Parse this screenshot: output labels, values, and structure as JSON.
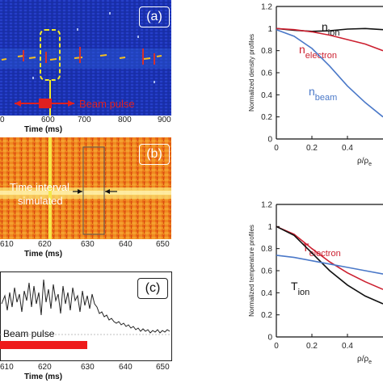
{
  "panels": {
    "a": {
      "label": "(a)",
      "xlabel": "Time (ms)",
      "xticks": [
        "0",
        "600",
        "700",
        "800",
        "900"
      ],
      "beam_label": "Beam pulse"
    },
    "b": {
      "label": "(b)",
      "xlabel": "Time (ms)",
      "xticks": [
        "610",
        "620",
        "630",
        "640",
        "650"
      ],
      "annotation_line1": "Time interval",
      "annotation_line2": "simulated"
    },
    "c": {
      "label": "(c)",
      "xlabel": "Time (ms)",
      "xticks": [
        "610",
        "620",
        "630",
        "640",
        "650"
      ],
      "beam_label": "Beam pulse"
    }
  },
  "chart_data": [
    {
      "type": "line",
      "ylabel": "Normalized density profiles",
      "xlabel": "ρ/ρ",
      "xlabel_sub": "e",
      "xlim": [
        0,
        0.6
      ],
      "ylim": [
        0,
        1.2
      ],
      "xticks": [
        "0",
        "0.2",
        "0.4"
      ],
      "yticks": [
        "0",
        "0.2",
        "0.4",
        "0.6",
        "0.8",
        "1",
        "1.2"
      ],
      "series": [
        {
          "name_main": "n",
          "name_sub": "ion",
          "color": "#111111",
          "x": [
            0,
            0.1,
            0.2,
            0.3,
            0.4,
            0.5,
            0.6
          ],
          "y": [
            1.0,
            0.985,
            0.975,
            0.98,
            0.995,
            1.0,
            0.99
          ]
        },
        {
          "name_main": "n",
          "name_sub": "electron",
          "color": "#cc1f2f",
          "x": [
            0,
            0.1,
            0.2,
            0.3,
            0.4,
            0.5,
            0.6
          ],
          "y": [
            1.0,
            0.99,
            0.97,
            0.94,
            0.9,
            0.86,
            0.8
          ]
        },
        {
          "name_main": "n",
          "name_sub": "beam",
          "color": "#4a78c8",
          "x": [
            0,
            0.1,
            0.2,
            0.3,
            0.4,
            0.5,
            0.6
          ],
          "y": [
            0.99,
            0.93,
            0.82,
            0.66,
            0.48,
            0.33,
            0.2
          ]
        }
      ]
    },
    {
      "type": "line",
      "ylabel": "Normalized temperature profiles",
      "xlabel": "ρ/ρ",
      "xlabel_sub": "e",
      "xlim": [
        0,
        0.6
      ],
      "ylim": [
        0,
        1.2
      ],
      "xticks": [
        "0",
        "0.2",
        "0.4"
      ],
      "yticks": [
        "0",
        "0.2",
        "0.4",
        "0.6",
        "0.8",
        "1",
        "1.2"
      ],
      "series": [
        {
          "name_main": "T",
          "name_sub": "electron",
          "color": "#cc1f2f",
          "x": [
            0,
            0.1,
            0.2,
            0.3,
            0.4,
            0.5,
            0.6
          ],
          "y": [
            1.0,
            0.93,
            0.8,
            0.68,
            0.58,
            0.5,
            0.43
          ]
        },
        {
          "name_main": "T",
          "name_sub": "ion",
          "color": "#111111",
          "x": [
            0,
            0.1,
            0.2,
            0.3,
            0.4,
            0.5,
            0.6
          ],
          "y": [
            1.0,
            0.92,
            0.76,
            0.6,
            0.47,
            0.37,
            0.3
          ]
        },
        {
          "name_main": "",
          "name_sub": "",
          "color": "#4a78c8",
          "x": [
            0,
            0.1,
            0.2,
            0.3,
            0.4,
            0.5,
            0.6
          ],
          "y": [
            0.74,
            0.72,
            0.69,
            0.66,
            0.63,
            0.6,
            0.57
          ]
        }
      ]
    }
  ]
}
